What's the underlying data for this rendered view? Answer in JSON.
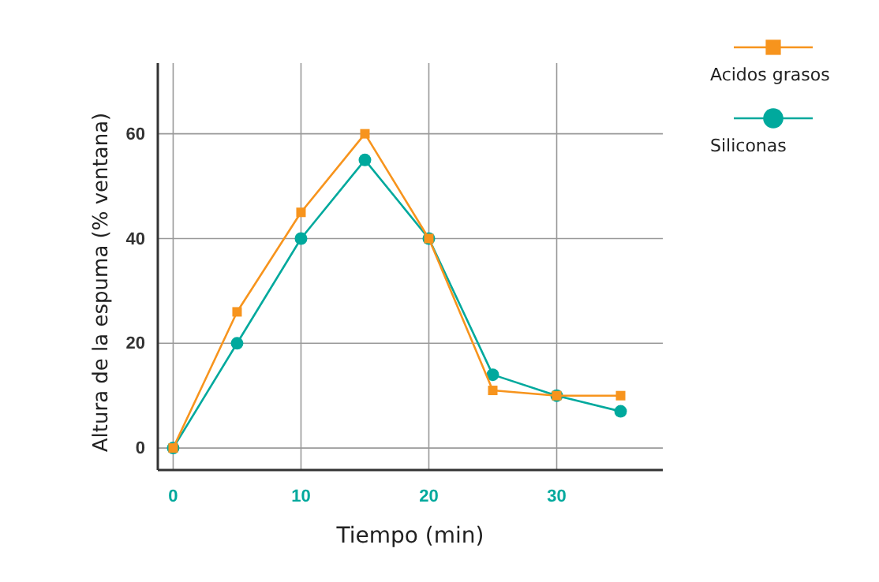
{
  "chart_data": {
    "type": "line",
    "xlabel": "Tiempo (min)",
    "ylabel": "Altura de la espuma (% ventana)",
    "xlim": [
      -1.2,
      38.3
    ],
    "ylim": [
      -4.2,
      73.5
    ],
    "xticks": [
      0,
      10,
      20,
      30
    ],
    "yticks": [
      0,
      20,
      40,
      60
    ],
    "grid": true,
    "legend": "top right",
    "series": [
      {
        "name": "Acidos grasos",
        "color": "#f7941d",
        "marker": "square",
        "x": [
          0,
          5,
          10,
          15,
          20,
          25,
          30,
          35
        ],
        "values": [
          0,
          26,
          45,
          60,
          40,
          11,
          10,
          10
        ]
      },
      {
        "name": "Siliconas",
        "color": "#00a99d",
        "marker": "circle",
        "x": [
          0,
          5,
          10,
          15,
          20,
          25,
          30,
          35
        ],
        "values": [
          0,
          20,
          40,
          55,
          40,
          14,
          10,
          7
        ]
      }
    ]
  }
}
